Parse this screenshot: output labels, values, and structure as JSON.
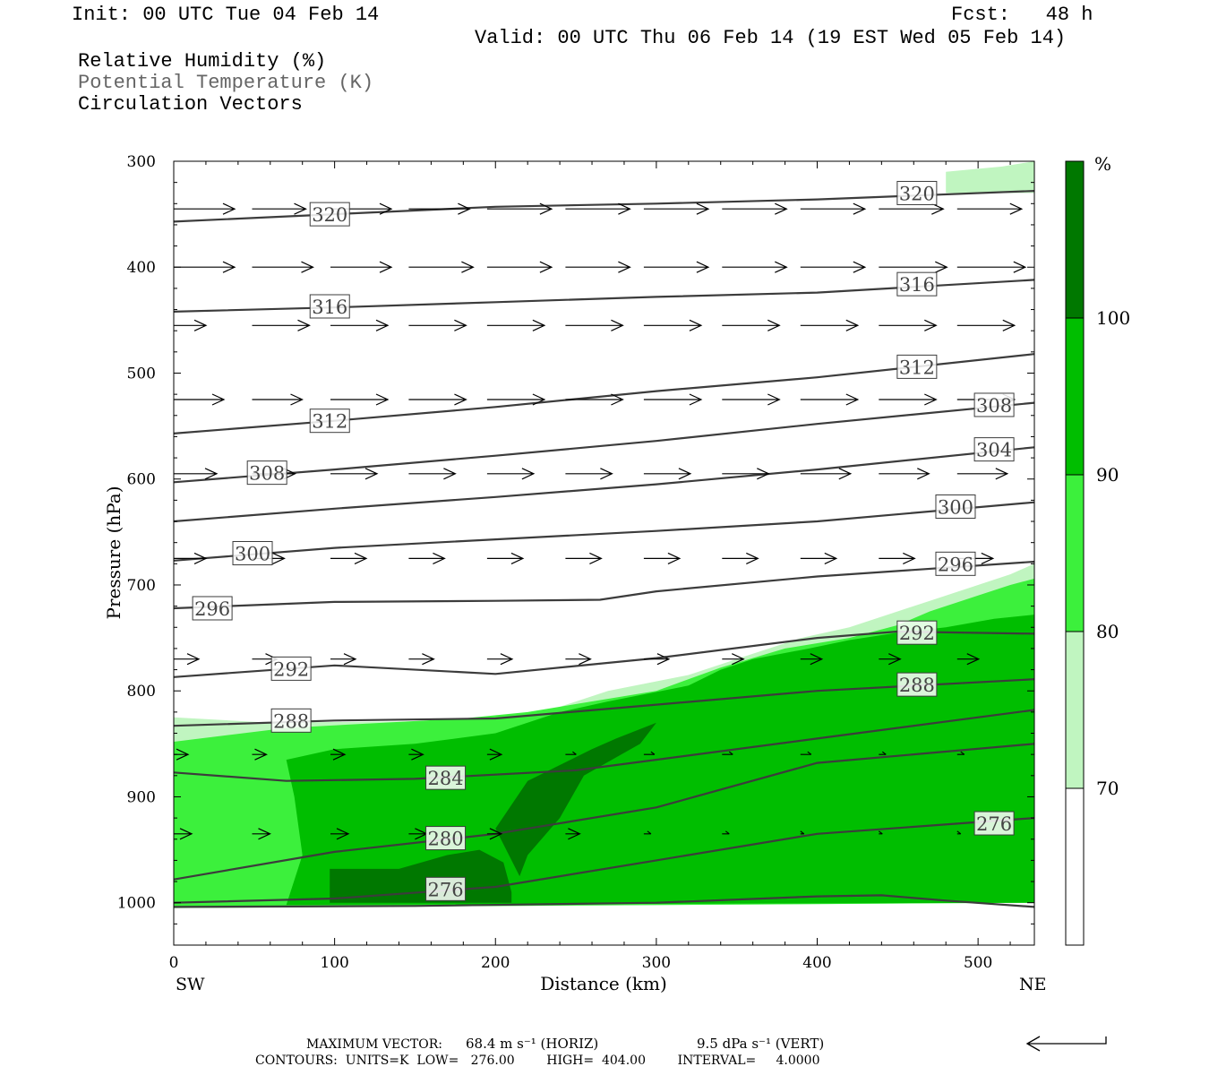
{
  "header": {
    "init": "Init: 00 UTC Tue 04 Feb 14",
    "fcst": "Fcst:   48 h",
    "valid": "Valid: 00 UTC Thu 06 Feb 14 (19 EST Wed 05 Feb 14)",
    "field1": "Relative Humidity (%)",
    "field2": "Potential Temperature (K)",
    "field3": "Circulation Vectors"
  },
  "footer": {
    "max_vector_label": "MAXIMUM VECTOR:",
    "max_vector_horiz": "68.4 m s⁻¹ (HORIZ)",
    "max_vector_vert": "9.5 dPa s⁻¹ (VERT)",
    "contours": "CONTOURS:  UNITS=K  LOW=   276.00        HIGH=  404.00        INTERVAL=     4.0000"
  },
  "chart_data": {
    "type": "cross-section",
    "xlabel": "Distance (km)",
    "ylabel": "Pressure (hPa)",
    "x_end_labels": [
      "SW",
      "NE"
    ],
    "xlim": [
      0,
      535
    ],
    "ylim": [
      1040,
      300
    ],
    "xticks": [
      0,
      100,
      200,
      300,
      400,
      500
    ],
    "yticks": [
      300,
      400,
      500,
      600,
      700,
      800,
      900,
      1000
    ],
    "colorbar": {
      "unit": "%",
      "levels": [
        70,
        80,
        90,
        100
      ],
      "colors": [
        "#ffffff",
        "#c0f5c0",
        "#3cf03c",
        "#00be00",
        "#007800"
      ]
    },
    "rh_regions": [
      {
        "level": 70,
        "color": "#c0f5c0",
        "points": [
          [
            0,
            825
          ],
          [
            60,
            830
          ],
          [
            200,
            828
          ],
          [
            240,
            815
          ],
          [
            270,
            800
          ],
          [
            320,
            785
          ],
          [
            360,
            765
          ],
          [
            390,
            750
          ],
          [
            420,
            740
          ],
          [
            450,
            725
          ],
          [
            470,
            715
          ],
          [
            500,
            700
          ],
          [
            520,
            690
          ],
          [
            535,
            680
          ],
          [
            535,
            1000
          ],
          [
            0,
            1005
          ]
        ]
      },
      {
        "level": 70,
        "color": "#c0f5c0",
        "points": [
          [
            480,
            310
          ],
          [
            515,
            305
          ],
          [
            535,
            300
          ],
          [
            535,
            330
          ],
          [
            480,
            330
          ]
        ]
      },
      {
        "level": 80,
        "color": "#3cf03c",
        "points": [
          [
            0,
            848
          ],
          [
            70,
            835
          ],
          [
            180,
            826
          ],
          [
            220,
            820
          ],
          [
            260,
            810
          ],
          [
            300,
            800
          ],
          [
            340,
            778
          ],
          [
            380,
            760
          ],
          [
            420,
            750
          ],
          [
            450,
            738
          ],
          [
            470,
            725
          ],
          [
            500,
            710
          ],
          [
            520,
            700
          ],
          [
            535,
            694
          ],
          [
            535,
            1000
          ],
          [
            0,
            1005
          ]
        ]
      },
      {
        "level": 80,
        "color": "#3cf03c",
        "points": [
          [
            0,
            950
          ],
          [
            25,
            948
          ],
          [
            28,
            960
          ],
          [
            15,
            972
          ],
          [
            0,
            975
          ]
        ]
      },
      {
        "level": 90,
        "color": "#00be00",
        "points": [
          [
            70,
            865
          ],
          [
            100,
            855
          ],
          [
            150,
            850
          ],
          [
            200,
            840
          ],
          [
            240,
            820
          ],
          [
            270,
            810
          ],
          [
            320,
            795
          ],
          [
            340,
            780
          ],
          [
            360,
            770
          ],
          [
            395,
            760
          ],
          [
            420,
            752
          ],
          [
            450,
            745
          ],
          [
            480,
            740
          ],
          [
            510,
            732
          ],
          [
            535,
            728
          ],
          [
            535,
            1000
          ],
          [
            70,
            1002
          ],
          [
            80,
            955
          ],
          [
            75,
            900
          ]
        ]
      },
      {
        "level": 100,
        "color": "#007800",
        "points": [
          [
            220,
            885
          ],
          [
            260,
            855
          ],
          [
            275,
            845
          ],
          [
            300,
            830
          ],
          [
            290,
            850
          ],
          [
            255,
            880
          ],
          [
            240,
            920
          ],
          [
            220,
            955
          ],
          [
            215,
            975
          ],
          [
            200,
            930
          ]
        ]
      },
      {
        "level": 100,
        "color": "#007800",
        "points": [
          [
            97,
            968
          ],
          [
            140,
            968
          ],
          [
            170,
            955
          ],
          [
            190,
            950
          ],
          [
            205,
            962
          ],
          [
            210,
            990
          ],
          [
            210,
            1000
          ],
          [
            130,
            1000
          ],
          [
            97,
            1000
          ]
        ]
      }
    ],
    "theta_contours": [
      {
        "value": 320,
        "points": [
          [
            0,
            357
          ],
          [
            100,
            350
          ],
          [
            200,
            343
          ],
          [
            300,
            340
          ],
          [
            400,
            336
          ],
          [
            535,
            328
          ]
        ],
        "labels": [
          [
            97,
            350
          ],
          [
            462,
            330
          ]
        ]
      },
      {
        "value": 316,
        "points": [
          [
            0,
            442
          ],
          [
            100,
            438
          ],
          [
            200,
            433
          ],
          [
            300,
            428
          ],
          [
            400,
            424
          ],
          [
            535,
            412
          ]
        ],
        "labels": [
          [
            97,
            437
          ],
          [
            462,
            416
          ]
        ]
      },
      {
        "value": 312,
        "points": [
          [
            0,
            557
          ],
          [
            100,
            545
          ],
          [
            200,
            532
          ],
          [
            300,
            517
          ],
          [
            400,
            504
          ],
          [
            535,
            482
          ]
        ],
        "labels": [
          [
            97,
            545
          ],
          [
            462,
            494
          ]
        ]
      },
      {
        "value": 308,
        "points": [
          [
            0,
            603
          ],
          [
            100,
            591
          ],
          [
            200,
            578
          ],
          [
            300,
            564
          ],
          [
            400,
            548
          ],
          [
            535,
            528
          ]
        ],
        "labels": [
          [
            58,
            594
          ],
          [
            510,
            530
          ]
        ]
      },
      {
        "value": 304,
        "points": [
          [
            0,
            640
          ],
          [
            100,
            628
          ],
          [
            200,
            617
          ],
          [
            300,
            605
          ],
          [
            400,
            591
          ],
          [
            535,
            570
          ]
        ],
        "labels": [
          [
            510,
            572
          ]
        ]
      },
      {
        "value": 300,
        "points": [
          [
            0,
            677
          ],
          [
            100,
            665
          ],
          [
            200,
            657
          ],
          [
            300,
            649
          ],
          [
            400,
            640
          ],
          [
            535,
            622
          ]
        ],
        "labels": [
          [
            49,
            670
          ],
          [
            486,
            626
          ]
        ]
      },
      {
        "value": 296,
        "points": [
          [
            0,
            722
          ],
          [
            100,
            716
          ],
          [
            200,
            715
          ],
          [
            265,
            714
          ],
          [
            300,
            706
          ],
          [
            400,
            692
          ],
          [
            535,
            678
          ]
        ],
        "labels": [
          [
            24,
            722
          ],
          [
            486,
            680
          ]
        ]
      },
      {
        "value": 292,
        "points": [
          [
            0,
            787
          ],
          [
            100,
            776
          ],
          [
            200,
            784
          ],
          [
            300,
            769
          ],
          [
            400,
            750
          ],
          [
            450,
            744
          ],
          [
            535,
            746
          ]
        ],
        "labels": [
          [
            73,
            779
          ],
          [
            462,
            745
          ]
        ]
      },
      {
        "value": 288,
        "points": [
          [
            0,
            833
          ],
          [
            100,
            828
          ],
          [
            200,
            826
          ],
          [
            300,
            813
          ],
          [
            400,
            800
          ],
          [
            535,
            789
          ]
        ],
        "labels": [
          [
            73,
            828
          ],
          [
            462,
            794
          ]
        ]
      },
      {
        "value": 284,
        "points": [
          [
            0,
            877
          ],
          [
            70,
            885
          ],
          [
            150,
            883
          ],
          [
            250,
            875
          ],
          [
            400,
            845
          ],
          [
            535,
            818
          ]
        ],
        "labels": [
          [
            169,
            882
          ]
        ]
      },
      {
        "value": 280,
        "points": [
          [
            0,
            978
          ],
          [
            100,
            952
          ],
          [
            200,
            935
          ],
          [
            300,
            910
          ],
          [
            400,
            868
          ],
          [
            535,
            850
          ]
        ],
        "labels": [
          [
            169,
            939
          ]
        ]
      },
      {
        "value": 276,
        "points": [
          [
            0,
            1000
          ],
          [
            100,
            996
          ],
          [
            200,
            985
          ],
          [
            300,
            960
          ],
          [
            400,
            935
          ],
          [
            535,
            920
          ]
        ],
        "labels": [
          [
            169,
            987
          ],
          [
            510,
            925
          ]
        ]
      },
      {
        "value": 1000,
        "points": [
          [
            0,
            1004
          ],
          [
            150,
            1003
          ],
          [
            300,
            1000
          ],
          [
            400,
            994
          ],
          [
            440,
            993
          ],
          [
            480,
            998
          ],
          [
            535,
            1004
          ]
        ],
        "labels": []
      }
    ],
    "vector_rows": [
      {
        "p": 345,
        "len": [
          0.85,
          0.75,
          0.85,
          0.85,
          0.9,
          0.9,
          0.9,
          0.9,
          0.9,
          0.9,
          0.9,
          0.95
        ]
      },
      {
        "p": 400,
        "len": [
          0.85,
          0.85,
          0.85,
          0.9,
          0.9,
          0.9,
          0.9,
          0.9,
          0.9,
          0.95,
          0.95,
          0.95
        ]
      },
      {
        "p": 455,
        "len": [
          0.45,
          0.8,
          0.8,
          0.8,
          0.8,
          0.8,
          0.8,
          0.8,
          0.8,
          0.8,
          0.8,
          0.8
        ]
      },
      {
        "p": 525,
        "len": [
          0.7,
          0.7,
          0.8,
          0.8,
          0.8,
          0.8,
          0.8,
          0.8,
          0.8,
          0.8,
          0.8,
          0.8
        ]
      },
      {
        "p": 595,
        "len": [
          0.6,
          0.6,
          0.65,
          0.65,
          0.65,
          0.65,
          0.65,
          0.65,
          0.7,
          0.7,
          0.7,
          0.7
        ]
      },
      {
        "p": 675,
        "len": [
          0.45,
          0.45,
          0.5,
          0.5,
          0.5,
          0.5,
          0.5,
          0.5,
          0.5,
          0.5,
          0.5,
          0.0
        ]
      },
      {
        "p": 770,
        "len": [
          0.35,
          0.35,
          0.35,
          0.35,
          0.35,
          0.35,
          0.35,
          0.3,
          0.3,
          0.3,
          0.3,
          0.3
        ]
      },
      {
        "p": 860,
        "len": [
          0.2,
          0.2,
          0.2,
          0.2,
          0.2,
          0.15,
          0.15,
          0.15,
          0.15,
          0.1,
          0.1,
          0.05
        ]
      },
      {
        "p": 935,
        "len": [
          0.25,
          0.25,
          0.25,
          0.25,
          0.2,
          0.2,
          0.1,
          0.1,
          0.05,
          0.05,
          0.05,
          0.05
        ]
      }
    ]
  }
}
